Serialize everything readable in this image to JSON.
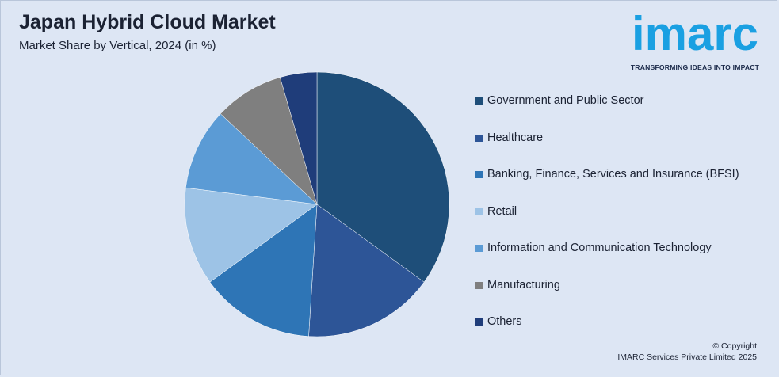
{
  "header": {
    "title": "Japan Hybrid Cloud Market",
    "subtitle": "Market Share by Vertical, 2024 (in %)"
  },
  "logo": {
    "word": "imarc",
    "tagline": "TRANSFORMING IDEAS INTO IMPACT",
    "color": "#1aa0e2"
  },
  "footer": {
    "line1": "© Copyright",
    "line2": "IMARC Services Private Limited 2025"
  },
  "chart_data": {
    "type": "pie",
    "title": "Japan Hybrid Cloud Market",
    "subtitle": "Market Share by Vertical, 2024 (in %)",
    "legend_position": "right",
    "series": [
      {
        "name": "Government and Public Sector",
        "value": 35.0,
        "color": "#1e4e79"
      },
      {
        "name": "Healthcare",
        "value": 16.0,
        "color": "#2d5597"
      },
      {
        "name": "Banking, Finance, Services and Insurance (BFSI)",
        "value": 14.0,
        "color": "#2e75b6"
      },
      {
        "name": "Retail",
        "value": 12.0,
        "color": "#9dc3e6"
      },
      {
        "name": "Information and Communication Technology",
        "value": 10.0,
        "color": "#5b9bd5"
      },
      {
        "name": "Manufacturing",
        "value": 8.5,
        "color": "#7f7f7f"
      },
      {
        "name": "Others",
        "value": 4.5,
        "color": "#1f3d7a"
      }
    ]
  }
}
